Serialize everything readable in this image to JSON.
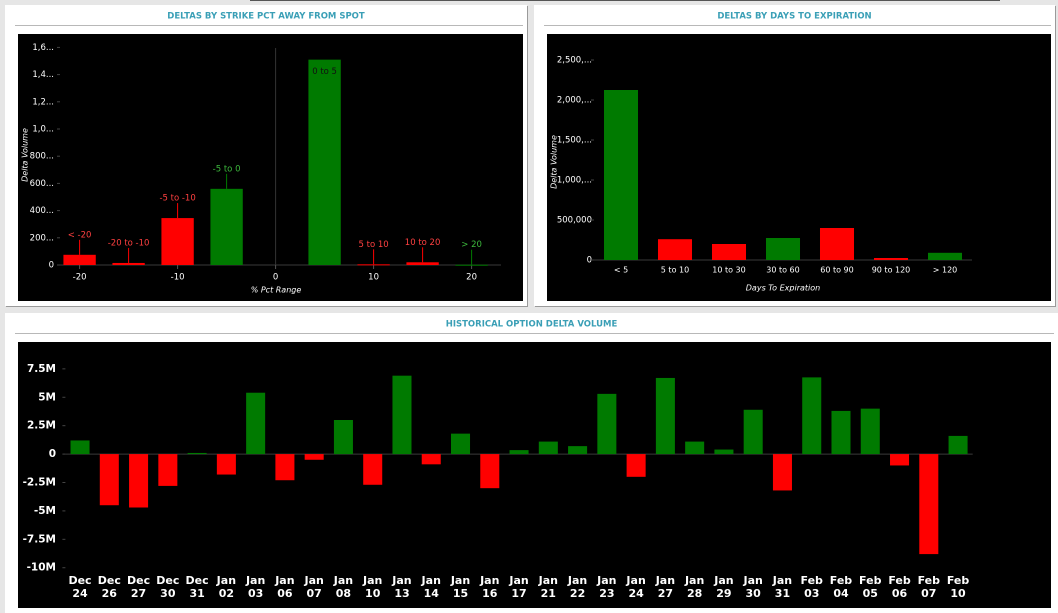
{
  "chart_data": [
    {
      "type": "bar",
      "title": "DELTAS BY STRIKE PCT AWAY FROM SPOT",
      "y_label": "Delta Volume",
      "x_label": "% Pct Range",
      "categories": [
        "< -20",
        "-20 to -10",
        "-5 to -10",
        "-5 to 0",
        "0 to 5",
        "5 to 10",
        "10 to 20",
        "> 20"
      ],
      "x": [
        -20,
        -15,
        -10,
        -5,
        5,
        10,
        15,
        20
      ],
      "values": [
        75,
        15,
        345,
        560,
        1510,
        5,
        20,
        2
      ],
      "colors": [
        "#ff0000",
        "#ff0000",
        "#ff0000",
        "#007a00",
        "#007a00",
        "#ff0000",
        "#ff0000",
        "#007a00"
      ],
      "xlim": [
        -22,
        23
      ],
      "xticks": [
        -20,
        -10,
        0,
        10,
        20
      ],
      "ylim": [
        0,
        1650
      ],
      "yticks": [
        0,
        {
          "value": 200,
          "label": "200..."
        },
        {
          "value": 400,
          "label": "400..."
        },
        {
          "value": 600,
          "label": "600..."
        },
        {
          "value": 800,
          "label": "800..."
        },
        {
          "value": 1000,
          "label": "1,0..."
        },
        {
          "value": 1200,
          "label": "1,2..."
        },
        {
          "value": 1400,
          "label": "1,4..."
        },
        {
          "value": 1600,
          "label": "1,6..."
        }
      ]
    },
    {
      "type": "bar",
      "title": "DELTAS BY DAYS TO EXPIRATION",
      "y_label": "Delta Volume",
      "x_label": "Days To Expiration",
      "categories": [
        "< 5",
        "5 to 10",
        "10 to 30",
        "30 to 60",
        "60 to 90",
        "90 to 120",
        "> 120"
      ],
      "values": [
        2125000,
        260000,
        200000,
        275000,
        400000,
        25000,
        90000
      ],
      "colors": [
        "#007a00",
        "#ff0000",
        "#ff0000",
        "#007a00",
        "#ff0000",
        "#ff0000",
        "#007a00"
      ],
      "ylim": [
        0,
        2700000
      ],
      "yticks": [
        0,
        {
          "value": 500000,
          "label": "500,000"
        },
        {
          "value": 1000000,
          "label": "1,000,..."
        },
        {
          "value": 1500000,
          "label": "1,500,..."
        },
        {
          "value": 2000000,
          "label": "2,000,..."
        },
        {
          "value": 2500000,
          "label": "2,500,..."
        }
      ]
    },
    {
      "type": "bar",
      "title": "HISTORICAL OPTION DELTA VOLUME",
      "categories": [
        "Dec 24",
        "Dec 26",
        "Dec 27",
        "Dec 30",
        "Dec 31",
        "Jan 02",
        "Jan 03",
        "Jan 06",
        "Jan 07",
        "Jan 08",
        "Jan 10",
        "Jan 13",
        "Jan 14",
        "Jan 15",
        "Jan 16",
        "Jan 17",
        "Jan 21",
        "Jan 22",
        "Jan 23",
        "Jan 24",
        "Jan 27",
        "Jan 28",
        "Jan 29",
        "Jan 30",
        "Jan 31",
        "Feb 03",
        "Feb 04",
        "Feb 05",
        "Feb 06",
        "Feb 07",
        "Feb 10"
      ],
      "values": [
        1200000,
        -4500000,
        -4700000,
        -2800000,
        100000,
        -1800000,
        5400000,
        -2300000,
        -500000,
        3000000,
        -2700000,
        6900000,
        -900000,
        1800000,
        -3000000,
        350000,
        1100000,
        700000,
        5300000,
        -2000000,
        6700000,
        1100000,
        400000,
        3900000,
        -3200000,
        6750000,
        3800000,
        4000000,
        -1000000,
        -8800000,
        1600000
      ],
      "color_positive": "#007a00",
      "color_negative": "#ff0000",
      "ylim": [
        -10200000,
        9600000
      ],
      "yticks": [
        {
          "value": -10000000,
          "label": "-10M"
        },
        {
          "value": -7500000,
          "label": "-7.5M"
        },
        {
          "value": -5000000,
          "label": "-5M"
        },
        {
          "value": -2500000,
          "label": "-2.5M"
        },
        0,
        {
          "value": 2500000,
          "label": "2.5M"
        },
        {
          "value": 5000000,
          "label": "5M"
        },
        {
          "value": 7500000,
          "label": "7.5M"
        }
      ]
    }
  ]
}
